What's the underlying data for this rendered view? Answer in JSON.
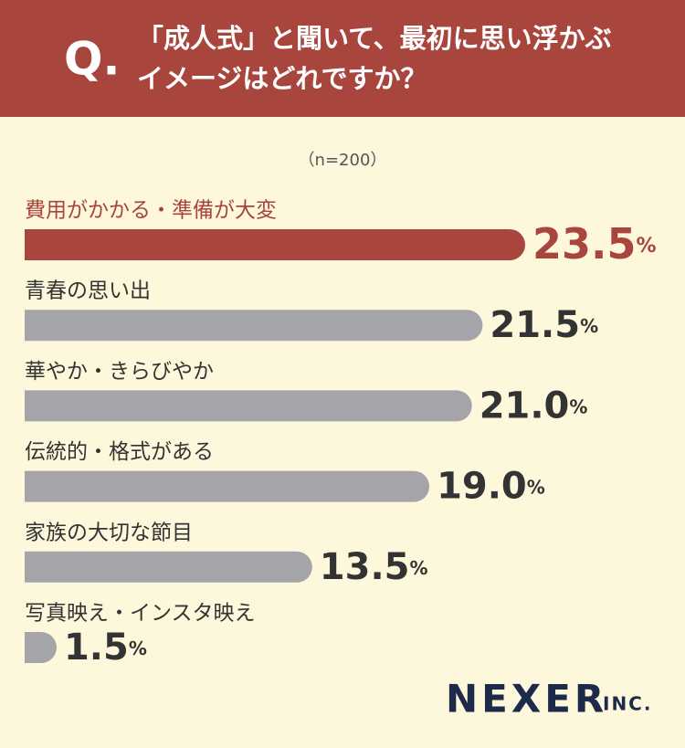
{
  "chart_data": {
    "type": "bar",
    "orientation": "horizontal",
    "question_label": "Q.",
    "title": [
      "「成人式」と聞いて、最初に思い浮かぶ",
      "イメージはどれですか？"
    ],
    "subtitle": "（n=200）",
    "categories": [
      "費用がかかる・準備が大変",
      "青春の思い出",
      "華やか・きらびやか",
      "伝統的・格式がある",
      "家族の大切な節目",
      "写真映え・インスタ映え"
    ],
    "values": [
      23.5,
      21.5,
      21.0,
      19.0,
      13.5,
      1.5
    ],
    "value_labels": [
      "23.5%",
      "21.5%",
      "21.0%",
      "19.0%",
      "13.5%",
      "1.5%"
    ],
    "colors": [
      "#a8453d",
      "#a5a5a9",
      "#a5a5a9",
      "#a5a5a9",
      "#a5a5a9",
      "#a5a5a9"
    ],
    "label_colors": [
      "#a8453d",
      "#333333",
      "#333333",
      "#333333",
      "#333333",
      "#333333"
    ],
    "logo": {
      "name": "NEXER",
      "suffix": "INC."
    }
  }
}
